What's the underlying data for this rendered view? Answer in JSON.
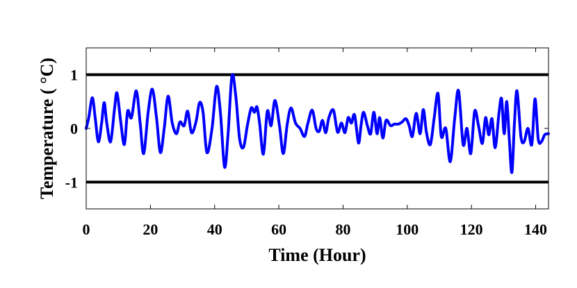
{
  "chart_data": {
    "type": "line",
    "title": "",
    "xlabel": "Time (Hour)",
    "ylabel": "Temperature ( °C)",
    "xlim": [
      0,
      144
    ],
    "ylim": [
      -1.5,
      1.5
    ],
    "xticks": [
      0,
      20,
      40,
      60,
      80,
      100,
      120,
      140
    ],
    "xtick_labels": [
      "0",
      "20",
      "40",
      "60",
      "80",
      "100",
      "120",
      "140"
    ],
    "yticks": [
      -1,
      0,
      1
    ],
    "ytick_labels": [
      "-1",
      "0",
      "1"
    ],
    "grid": false,
    "legend": "none",
    "reference_lines": [
      {
        "y": 1,
        "color": "#000000"
      },
      {
        "y": -1,
        "color": "#000000"
      }
    ],
    "series": [
      {
        "color": "#0000ff",
        "x": [
          0,
          0.8,
          1.9,
          2.8,
          3.8,
          4.8,
          5.6,
          6.4,
          7.6,
          8.8,
          9.6,
          10.8,
          11.9,
          12.9,
          14.1,
          15.6,
          16.8,
          17.9,
          19.3,
          20.6,
          21.9,
          23.1,
          24.3,
          25.5,
          26.8,
          28.1,
          29.2,
          30.5,
          31.6,
          32.8,
          34.2,
          35.3,
          36.4,
          37.6,
          39.2,
          40.6,
          41.8,
          43.1,
          44.2,
          45.4,
          46.6,
          47.8,
          49.0,
          50.2,
          51.4,
          52.4,
          53.2,
          54.0,
          55.2,
          56.4,
          57.6,
          58.8,
          60.2,
          61.4,
          62.6,
          63.8,
          65.2,
          66.6,
          68.0,
          69.0,
          70.4,
          71.6,
          72.6,
          73.6,
          74.6,
          75.6,
          77.0,
          78.3,
          79.5,
          80.6,
          81.6,
          82.6,
          83.6,
          84.8,
          85.6,
          86.4,
          87.6,
          88.6,
          89.6,
          90.6,
          91.4,
          92.4,
          93.4,
          94.8,
          96.0,
          97.2,
          98.4,
          99.6,
          100.6,
          101.6,
          102.8,
          104.0,
          105.0,
          106.0,
          107.2,
          108.4,
          109.6,
          110.6,
          112.0,
          113.4,
          114.8,
          116.0,
          117.4,
          118.6,
          119.8,
          121.0,
          122.2,
          123.4,
          124.4,
          125.4,
          126.4,
          127.4,
          128.6,
          129.4,
          130.2,
          131.0,
          131.8,
          132.6,
          133.4,
          134.2,
          135.4,
          136.4,
          137.6,
          138.8,
          139.8,
          140.8,
          141.8,
          142.8,
          144.0
        ],
        "y": [
          0.0,
          0.2,
          0.57,
          0.2,
          -0.25,
          0.1,
          0.48,
          0.1,
          -0.25,
          0.35,
          0.66,
          0.1,
          -0.3,
          0.32,
          0.2,
          0.7,
          0.1,
          -0.47,
          0.3,
          0.73,
          0.2,
          -0.45,
          0.0,
          0.6,
          0.1,
          -0.1,
          0.12,
          0.05,
          0.32,
          -0.08,
          0.12,
          0.48,
          0.3,
          -0.45,
          0.0,
          0.78,
          0.3,
          -0.72,
          -0.1,
          0.98,
          0.6,
          -0.2,
          -0.35,
          0.05,
          0.38,
          0.3,
          0.4,
          0.1,
          -0.48,
          0.32,
          0.05,
          0.52,
          0.05,
          -0.47,
          0.07,
          0.38,
          0.1,
          0.0,
          -0.15,
          0.08,
          0.34,
          0.0,
          -0.05,
          0.15,
          -0.08,
          0.2,
          0.34,
          -0.07,
          0.1,
          -0.08,
          0.2,
          0.1,
          0.25,
          -0.27,
          0.05,
          0.3,
          0.05,
          -0.1,
          0.3,
          -0.1,
          0.2,
          -0.18,
          0.15,
          0.05,
          0.08,
          0.08,
          0.12,
          0.18,
          0.05,
          -0.15,
          0.28,
          -0.1,
          0.35,
          -0.08,
          -0.3,
          0.2,
          0.65,
          -0.15,
          0.0,
          -0.62,
          0.2,
          0.7,
          -0.3,
          0.0,
          -0.47,
          0.32,
          0.05,
          -0.28,
          0.2,
          -0.12,
          0.18,
          -0.36,
          0.3,
          0.55,
          -0.1,
          0.5,
          -0.22,
          -0.82,
          0.1,
          0.7,
          -0.15,
          -0.25,
          0.0,
          -0.3,
          0.55,
          -0.2,
          -0.25,
          -0.12,
          -0.1
        ]
      }
    ]
  }
}
